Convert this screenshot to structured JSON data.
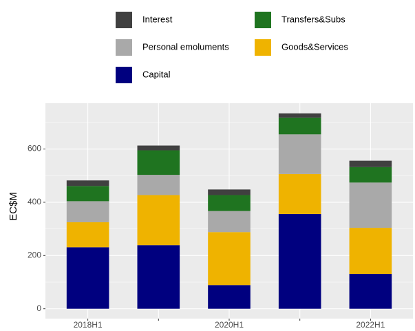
{
  "chart_data": {
    "type": "stacked_bar",
    "y_label": "EC$M",
    "categories": [
      "2018H1",
      null,
      "2020H1",
      null,
      "2022H1"
    ],
    "series": [
      {
        "name": "Interest",
        "color": "#404040",
        "values": [
          21,
          18,
          21,
          16,
          24
        ]
      },
      {
        "name": "Transfers&Subs",
        "color": "#1f7420",
        "values": [
          57,
          92,
          60,
          63,
          58
        ]
      },
      {
        "name": "Personal emoluments",
        "color": "#a9a9a9",
        "values": [
          79,
          76,
          79,
          149,
          170
        ]
      },
      {
        "name": "Goods&Services",
        "color": "#efb300",
        "values": [
          94,
          188,
          199,
          150,
          173
        ]
      },
      {
        "name": "Capital",
        "color": "#00007f",
        "values": [
          231,
          239,
          89,
          356,
          131
        ]
      }
    ],
    "ylim": [
      -37,
      772
    ],
    "yticks": [
      0,
      200,
      400,
      600
    ],
    "grid": true
  }
}
